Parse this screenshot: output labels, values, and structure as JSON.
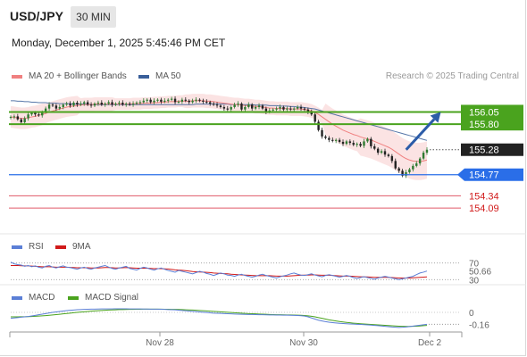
{
  "header": {
    "symbol": "USD/JPY",
    "timeframe": "30 MIN",
    "datetime": "Monday, December 1, 2025 5:45:46 PM CET",
    "attribution": "Research © 2025 Trading Central"
  },
  "colors": {
    "candle_up": "#2f7a31",
    "candle_down": "#222222",
    "ma20": "#f08080",
    "bollinger_fill": "#fbe0e0",
    "ma50": "#3a5f9a",
    "resistance": "#4aa31e",
    "support": "#2a6ee8",
    "target": "#e05a6a",
    "arrow": "#2c5ca8",
    "price_badge": "#222222",
    "rsi": "#5b7fd6",
    "rsi_ma": "#d11a1a",
    "macd": "#5b7fd6",
    "macd_signal": "#4aa31e"
  },
  "chart_data": [
    {
      "type": "candlestick",
      "legend": [
        {
          "name": "MA 20 + Bollinger Bands",
          "color": "#f08080"
        },
        {
          "name": "MA 50",
          "color": "#3a5f9a"
        }
      ],
      "x_ticks": [
        "Nov 28",
        "Nov 30",
        "Dec 2"
      ],
      "x_range": [
        0,
        120
      ],
      "ylim": [
        153.6,
        156.55
      ],
      "current_price": "155.28",
      "levels": [
        {
          "label": "156.05",
          "value": 156.05,
          "kind": "resistance"
        },
        {
          "label": "155.80",
          "value": 155.8,
          "kind": "resistance"
        },
        {
          "label": "154.77",
          "value": 154.77,
          "kind": "support"
        },
        {
          "label": "154.34",
          "value": 154.34,
          "kind": "target"
        },
        {
          "label": "154.09",
          "value": 154.09,
          "kind": "target"
        }
      ],
      "forecast_arrow": {
        "from": [
          114,
          155.28
        ],
        "to": [
          124,
          156.05
        ]
      },
      "close": [
        155.95,
        155.96,
        155.9,
        155.84,
        155.92,
        156.0,
        156.03,
        156.0,
        155.98,
        156.05,
        156.12,
        156.2,
        156.18,
        156.12,
        156.15,
        156.2,
        156.22,
        156.18,
        156.24,
        156.2,
        156.22,
        156.25,
        156.2,
        156.18,
        156.22,
        156.24,
        156.2,
        156.22,
        156.25,
        156.2,
        156.22,
        156.24,
        156.2,
        156.22,
        156.2,
        156.22,
        156.24,
        156.25,
        156.28,
        156.3,
        156.25,
        156.28,
        156.3,
        156.26,
        156.28,
        156.3,
        156.32,
        156.25,
        156.26,
        156.3,
        156.28,
        156.25,
        156.28,
        156.3,
        156.28,
        156.26,
        156.25,
        156.22,
        156.2,
        156.18,
        156.15,
        156.12,
        156.1,
        156.15,
        156.2,
        156.22,
        156.1,
        156.15,
        156.2,
        156.12,
        156.15,
        156.18,
        156.12,
        156.05,
        156.08,
        156.1,
        156.12,
        156.15,
        156.1,
        156.12,
        156.1,
        156.12,
        156.15,
        156.12,
        156.1,
        156.05,
        156.0,
        155.85,
        155.68,
        155.55,
        155.52,
        155.48,
        155.46,
        155.48,
        155.44,
        155.4,
        155.45,
        155.42,
        155.38,
        155.4,
        155.36,
        155.45,
        155.5,
        155.35,
        155.3,
        155.22,
        155.25,
        155.18,
        155.15,
        155.05,
        154.9,
        154.85,
        154.75,
        154.82,
        154.88,
        154.95,
        155.0,
        155.1,
        155.22,
        155.28
      ],
      "ma20": [
        155.95,
        155.94,
        155.93,
        155.92,
        155.92,
        155.93,
        155.95,
        155.96,
        155.98,
        156.0,
        156.02,
        156.05,
        156.07,
        156.09,
        156.11,
        156.13,
        156.15,
        156.16,
        156.17,
        156.18,
        156.19,
        156.2,
        156.2,
        156.2,
        156.21,
        156.21,
        156.21,
        156.21,
        156.21,
        156.21,
        156.21,
        156.21,
        156.21,
        156.21,
        156.21,
        156.22,
        156.22,
        156.22,
        156.23,
        156.23,
        156.23,
        156.24,
        156.24,
        156.25,
        156.25,
        156.26,
        156.26,
        156.26,
        156.27,
        156.27,
        156.27,
        156.27,
        156.28,
        156.28,
        156.28,
        156.28,
        156.27,
        156.27,
        156.26,
        156.25,
        156.24,
        156.23,
        156.22,
        156.21,
        156.2,
        156.2,
        156.19,
        156.18,
        156.18,
        156.17,
        156.16,
        156.16,
        156.15,
        156.14,
        156.13,
        156.13,
        156.12,
        156.12,
        156.12,
        156.12,
        156.11,
        156.11,
        156.11,
        156.11,
        156.1,
        156.09,
        156.07,
        156.04,
        156.0,
        155.95,
        155.9,
        155.85,
        155.8,
        155.76,
        155.72,
        155.68,
        155.65,
        155.62,
        155.59,
        155.57,
        155.54,
        155.52,
        155.5,
        155.48,
        155.45,
        155.42,
        155.39,
        155.36,
        155.33,
        155.29,
        155.24,
        155.19,
        155.14,
        155.1,
        155.07,
        155.05,
        155.04,
        155.04,
        155.05,
        155.07
      ],
      "ma50": [
        156.28,
        156.28,
        156.27,
        156.27,
        156.26,
        156.26,
        156.25,
        156.25,
        156.24,
        156.24,
        156.24,
        156.23,
        156.23,
        156.23,
        156.22,
        156.22,
        156.22,
        156.22,
        156.21,
        156.21,
        156.21,
        156.21,
        156.21,
        156.2,
        156.2,
        156.2,
        156.2,
        156.2,
        156.2,
        156.2,
        156.2,
        156.2,
        156.2,
        156.2,
        156.2,
        156.2,
        156.2,
        156.2,
        156.2,
        156.2,
        156.2,
        156.2,
        156.2,
        156.2,
        156.2,
        156.2,
        156.2,
        156.2,
        156.2,
        156.2,
        156.2,
        156.2,
        156.2,
        156.21,
        156.21,
        156.21,
        156.21,
        156.21,
        156.21,
        156.21,
        156.21,
        156.21,
        156.21,
        156.2,
        156.2,
        156.2,
        156.2,
        156.2,
        156.2,
        156.2,
        156.19,
        156.19,
        156.19,
        156.19,
        156.18,
        156.18,
        156.18,
        156.17,
        156.17,
        156.17,
        156.16,
        156.16,
        156.15,
        156.15,
        156.14,
        156.13,
        156.12,
        156.11,
        156.09,
        156.07,
        156.05,
        156.03,
        156.01,
        155.99,
        155.97,
        155.95,
        155.93,
        155.91,
        155.89,
        155.87,
        155.85,
        155.83,
        155.81,
        155.79,
        155.77,
        155.75,
        155.73,
        155.71,
        155.69,
        155.67,
        155.65,
        155.63,
        155.61,
        155.59,
        155.57,
        155.55,
        155.53,
        155.51,
        155.49,
        155.47
      ],
      "bb_width": [
        0.22,
        0.22,
        0.22,
        0.22,
        0.22,
        0.22,
        0.22,
        0.22,
        0.22,
        0.22,
        0.2,
        0.2,
        0.2,
        0.2,
        0.2,
        0.2,
        0.2,
        0.2,
        0.2,
        0.2,
        0.14,
        0.14,
        0.14,
        0.14,
        0.14,
        0.14,
        0.14,
        0.14,
        0.14,
        0.14,
        0.12,
        0.12,
        0.12,
        0.12,
        0.12,
        0.12,
        0.12,
        0.12,
        0.12,
        0.12,
        0.12,
        0.12,
        0.12,
        0.12,
        0.12,
        0.12,
        0.12,
        0.12,
        0.12,
        0.12,
        0.14,
        0.14,
        0.14,
        0.14,
        0.14,
        0.14,
        0.14,
        0.14,
        0.14,
        0.14,
        0.14,
        0.14,
        0.14,
        0.14,
        0.14,
        0.14,
        0.14,
        0.14,
        0.14,
        0.14,
        0.14,
        0.14,
        0.14,
        0.14,
        0.14,
        0.14,
        0.14,
        0.14,
        0.14,
        0.14,
        0.14,
        0.14,
        0.14,
        0.14,
        0.14,
        0.14,
        0.14,
        0.14,
        0.14,
        0.14,
        0.32,
        0.32,
        0.32,
        0.32,
        0.32,
        0.32,
        0.32,
        0.32,
        0.32,
        0.32,
        0.38,
        0.38,
        0.38,
        0.38,
        0.38,
        0.38,
        0.38,
        0.38,
        0.38,
        0.38,
        0.38,
        0.38,
        0.38,
        0.38,
        0.38,
        0.38,
        0.38,
        0.38,
        0.38,
        0.38
      ]
    },
    {
      "type": "line",
      "legend": [
        {
          "name": "RSI",
          "color": "#5b7fd6"
        },
        {
          "name": "9MA",
          "color": "#d11a1a"
        }
      ],
      "ylim": [
        20,
        80
      ],
      "reference_levels": [
        70,
        30
      ],
      "current_value": "50.66",
      "series": [
        {
          "name": "RSI",
          "values": [
            72,
            68,
            66,
            65,
            62,
            64,
            61,
            63,
            60,
            58,
            62,
            64,
            60,
            58,
            61,
            63,
            60,
            59,
            57,
            55,
            58,
            60,
            57,
            55,
            58,
            60,
            62,
            64,
            60,
            57,
            55,
            58,
            60,
            62,
            57,
            55,
            53,
            57,
            60,
            58,
            55,
            53,
            56,
            58,
            55,
            52,
            50,
            48,
            52,
            50,
            48,
            46,
            44,
            47,
            50,
            48,
            45,
            43,
            40,
            43,
            46,
            44,
            41,
            40,
            38,
            41,
            43,
            40,
            38,
            36,
            38,
            41,
            43,
            40,
            38,
            36,
            34,
            37,
            39,
            41,
            44,
            46,
            43,
            41,
            40,
            42,
            44,
            41,
            39,
            37,
            40,
            42,
            40,
            38,
            36,
            38,
            40,
            38,
            35,
            33,
            35,
            37,
            35,
            33,
            31,
            34,
            36,
            38,
            36,
            34,
            32,
            30,
            32,
            34,
            36,
            38,
            42,
            46,
            48,
            50.66
          ]
        },
        {
          "name": "9MA",
          "values": [
            64,
            64,
            64,
            63.5,
            63,
            63,
            62.5,
            62,
            61.5,
            61,
            61,
            61,
            60.5,
            60,
            60,
            60,
            60,
            59.5,
            59,
            58.5,
            58.5,
            58.5,
            58.5,
            58,
            58,
            58,
            58.5,
            59,
            59,
            58.5,
            58,
            58,
            58.5,
            59,
            58.5,
            58,
            57.5,
            57.5,
            57.5,
            57.5,
            57,
            56.5,
            56.5,
            56.5,
            56,
            55.5,
            54.5,
            53.5,
            53,
            52.5,
            51.5,
            50.5,
            49.5,
            49,
            48.5,
            48,
            47.5,
            47,
            46,
            45.5,
            45,
            44.5,
            44,
            43,
            42.5,
            42,
            41.5,
            41,
            40.5,
            40,
            39.5,
            39.5,
            39.5,
            39.5,
            39.5,
            39,
            38.5,
            38.5,
            38.5,
            38.5,
            39,
            39.5,
            40,
            40.5,
            41,
            41,
            41.5,
            41.5,
            41,
            40.5,
            40.5,
            40.5,
            40,
            39.5,
            39,
            38.5,
            38.5,
            38.5,
            38,
            37.5,
            37,
            36.5,
            36.5,
            36,
            35.5,
            35.5,
            35.5,
            35.5,
            35.5,
            35,
            34.5,
            34,
            34,
            34,
            34,
            34.5,
            35,
            35.5,
            36,
            36.5
          ]
        }
      ]
    },
    {
      "type": "line",
      "legend": [
        {
          "name": "MACD",
          "color": "#5b7fd6"
        },
        {
          "name": "MACD Signal",
          "color": "#4aa31e"
        }
      ],
      "ylim": [
        -0.24,
        0.12
      ],
      "zero_label": "0",
      "current_value": "-0.16",
      "series": [
        {
          "name": "MACD",
          "values": [
            -0.08,
            -0.075,
            -0.07,
            -0.065,
            -0.06,
            -0.055,
            -0.048,
            -0.04,
            -0.032,
            -0.024,
            -0.016,
            -0.008,
            0.0,
            0.006,
            0.012,
            0.018,
            0.024,
            0.028,
            0.032,
            0.036,
            0.038,
            0.04,
            0.042,
            0.043,
            0.044,
            0.045,
            0.046,
            0.046,
            0.047,
            0.047,
            0.048,
            0.048,
            0.048,
            0.048,
            0.047,
            0.047,
            0.046,
            0.046,
            0.045,
            0.045,
            0.044,
            0.044,
            0.043,
            0.042,
            0.04,
            0.038,
            0.036,
            0.034,
            0.03,
            0.026,
            0.022,
            0.018,
            0.014,
            0.01,
            0.006,
            0.002,
            -0.002,
            -0.006,
            -0.01,
            -0.012,
            -0.014,
            -0.016,
            -0.018,
            -0.02,
            -0.022,
            -0.024,
            -0.026,
            -0.027,
            -0.028,
            -0.029,
            -0.03,
            -0.031,
            -0.032,
            -0.033,
            -0.034,
            -0.035,
            -0.036,
            -0.036,
            -0.037,
            -0.038,
            -0.039,
            -0.04,
            -0.042,
            -0.045,
            -0.05,
            -0.06,
            -0.075,
            -0.09,
            -0.105,
            -0.115,
            -0.125,
            -0.132,
            -0.138,
            -0.143,
            -0.147,
            -0.15,
            -0.153,
            -0.156,
            -0.158,
            -0.16,
            -0.162,
            -0.165,
            -0.168,
            -0.171,
            -0.175,
            -0.179,
            -0.183,
            -0.187,
            -0.192,
            -0.197,
            -0.2,
            -0.202,
            -0.2,
            -0.196,
            -0.19,
            -0.184,
            -0.178,
            -0.172,
            -0.166,
            -0.16
          ]
        },
        {
          "name": "MACD Signal",
          "values": [
            -0.06,
            -0.06,
            -0.06,
            -0.059,
            -0.058,
            -0.057,
            -0.055,
            -0.053,
            -0.05,
            -0.047,
            -0.043,
            -0.039,
            -0.035,
            -0.03,
            -0.025,
            -0.02,
            -0.015,
            -0.01,
            -0.005,
            0.0,
            0.004,
            0.008,
            0.012,
            0.016,
            0.02,
            0.023,
            0.026,
            0.029,
            0.031,
            0.033,
            0.035,
            0.037,
            0.038,
            0.039,
            0.04,
            0.041,
            0.042,
            0.042,
            0.043,
            0.043,
            0.043,
            0.043,
            0.043,
            0.043,
            0.042,
            0.042,
            0.041,
            0.04,
            0.039,
            0.037,
            0.035,
            0.033,
            0.031,
            0.028,
            0.025,
            0.022,
            0.019,
            0.016,
            0.013,
            0.01,
            0.007,
            0.004,
            0.001,
            -0.002,
            -0.005,
            -0.008,
            -0.011,
            -0.014,
            -0.016,
            -0.018,
            -0.02,
            -0.022,
            -0.024,
            -0.026,
            -0.028,
            -0.03,
            -0.031,
            -0.032,
            -0.033,
            -0.034,
            -0.035,
            -0.036,
            -0.037,
            -0.039,
            -0.042,
            -0.046,
            -0.052,
            -0.06,
            -0.07,
            -0.08,
            -0.09,
            -0.1,
            -0.108,
            -0.116,
            -0.123,
            -0.129,
            -0.135,
            -0.14,
            -0.145,
            -0.149,
            -0.153,
            -0.156,
            -0.159,
            -0.162,
            -0.165,
            -0.168,
            -0.171,
            -0.174,
            -0.177,
            -0.18,
            -0.183,
            -0.186,
            -0.188,
            -0.189,
            -0.189,
            -0.188,
            -0.186,
            -0.183,
            -0.179,
            -0.175
          ]
        }
      ]
    }
  ]
}
